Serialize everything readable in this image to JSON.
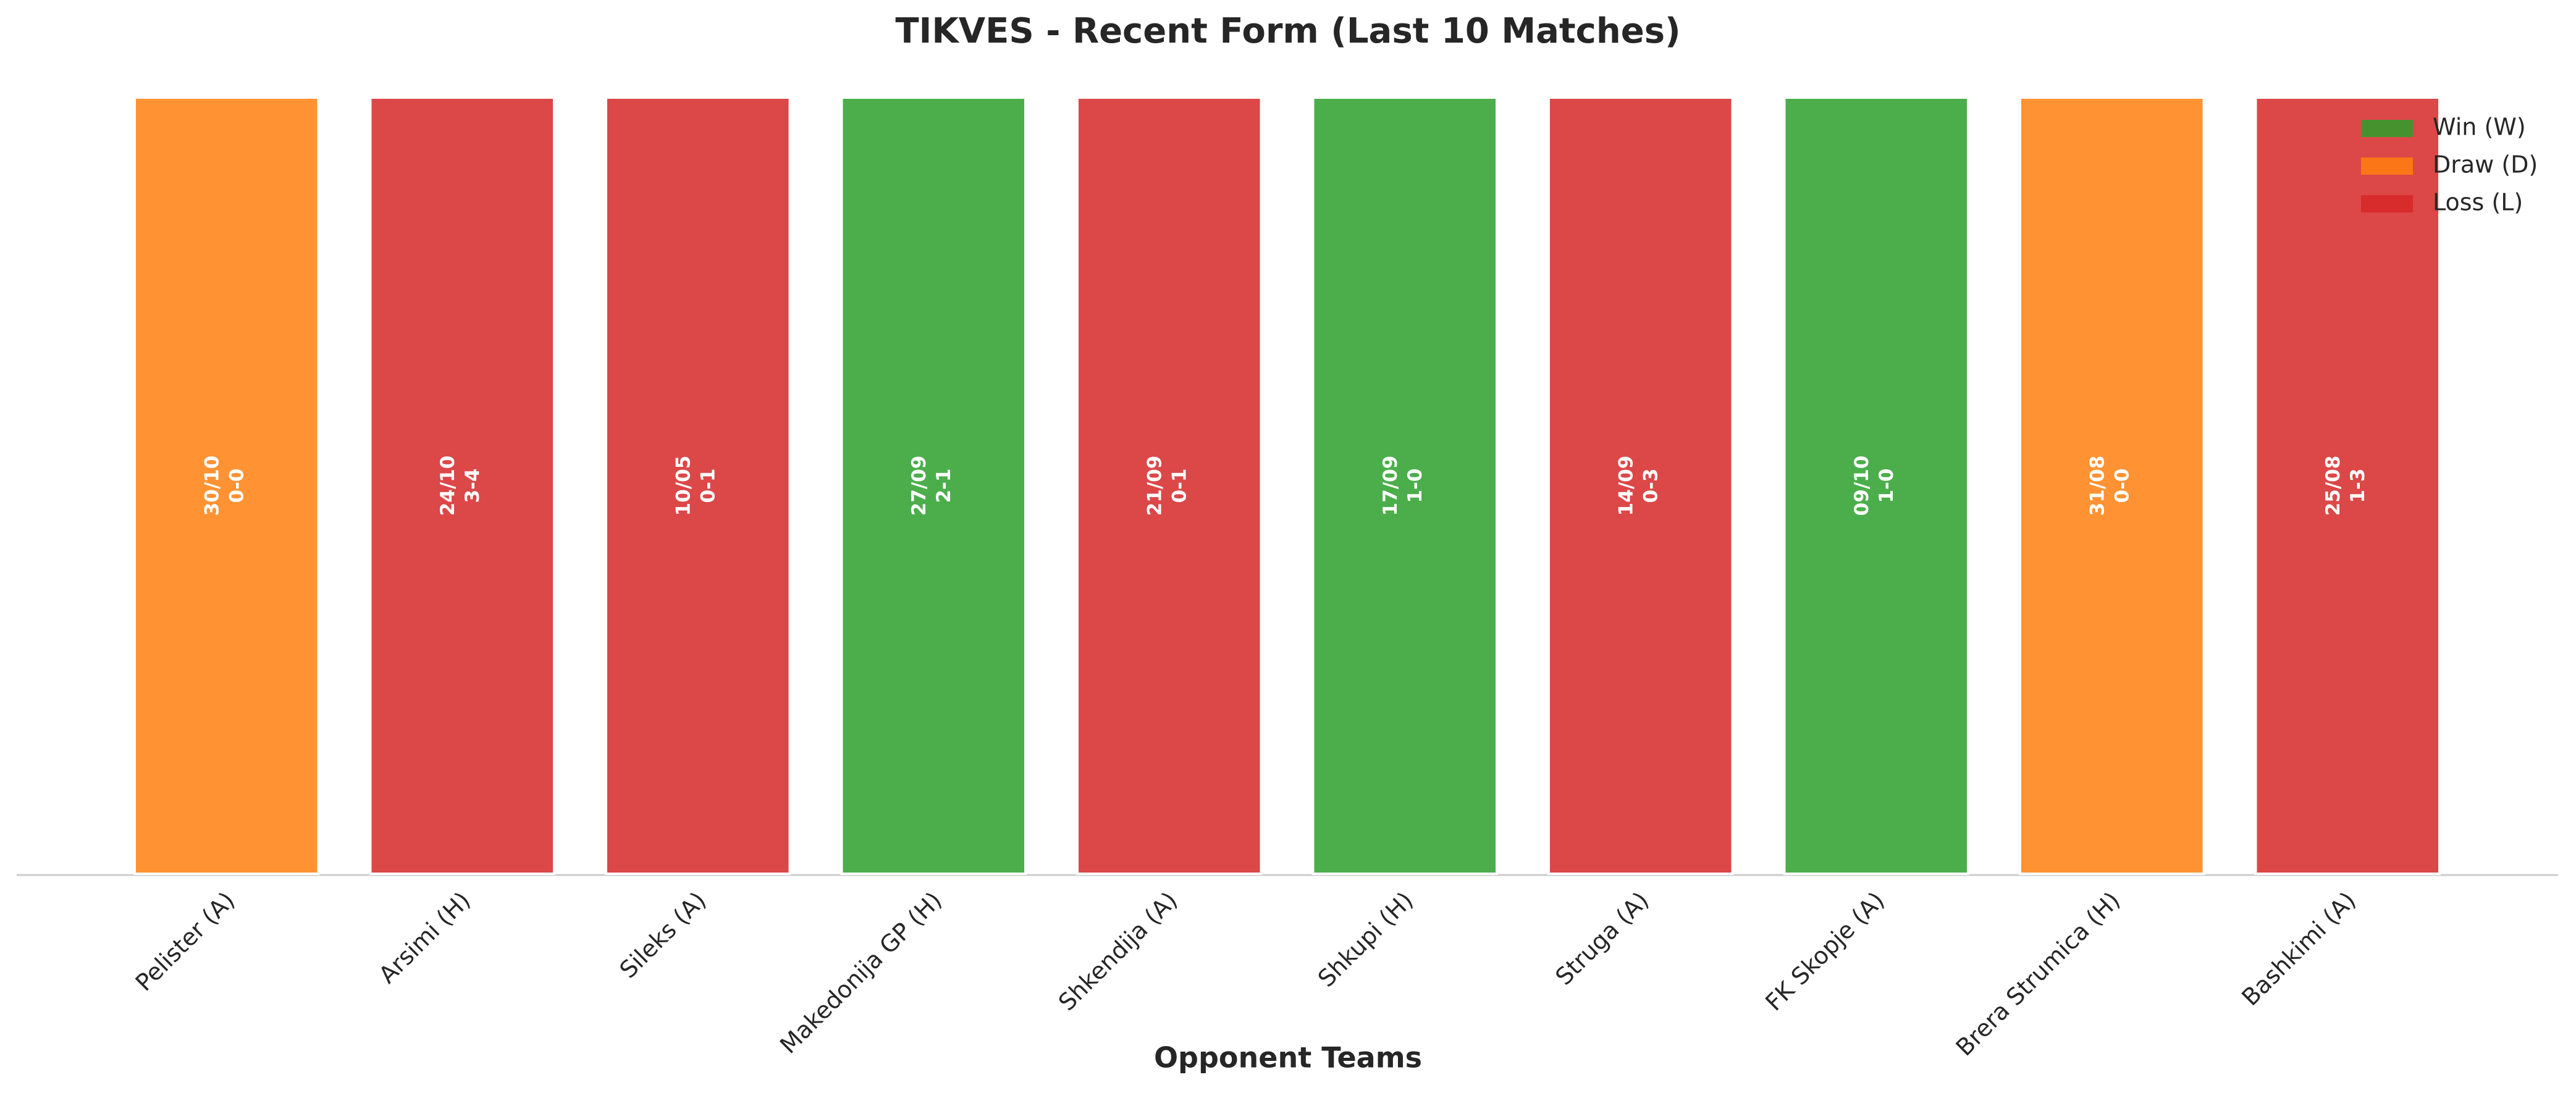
{
  "chart_data": {
    "type": "bar",
    "title": "TIKVES - Recent Form (Last 10 Matches)",
    "x_label": "Opponent Teams",
    "categories": [
      "Pelister (A)",
      "Arsimi (H)",
      "Sileks (A)",
      "Makedonija GP (H)",
      "Shkendija (A)",
      "Shkupi (H)",
      "Struga (A)",
      "FK Skopje (A)",
      "Brera Strumica (H)",
      "Bashkimi (A)"
    ],
    "values": [
      1,
      1,
      1,
      1,
      1,
      1,
      1,
      1,
      1,
      1
    ],
    "dates": [
      "30/10",
      "24/10",
      "10/05",
      "27/09",
      "21/09",
      "17/09",
      "14/09",
      "09/10",
      "31/08",
      "25/08"
    ],
    "scores": [
      "0-0",
      "3-4",
      "0-1",
      "2-1",
      "0-1",
      "1-0",
      "0-3",
      "1-0",
      "0-0",
      "1-3"
    ],
    "colors": [
      "#ff7f0e",
      "#d62728",
      "#d62728",
      "#2ca02c",
      "#d62728",
      "#2ca02c",
      "#d62728",
      "#2ca02c",
      "#ff7f0e",
      "#d62728"
    ],
    "ylim": [
      0,
      1
    ],
    "legend": [
      {
        "name": "Win (W)",
        "color": "#2ca02c"
      },
      {
        "name": "Draw (D)",
        "color": "#ff7f0e"
      },
      {
        "name": "Loss (L)",
        "color": "#d62728"
      }
    ],
    "legend_position": "upper right"
  }
}
